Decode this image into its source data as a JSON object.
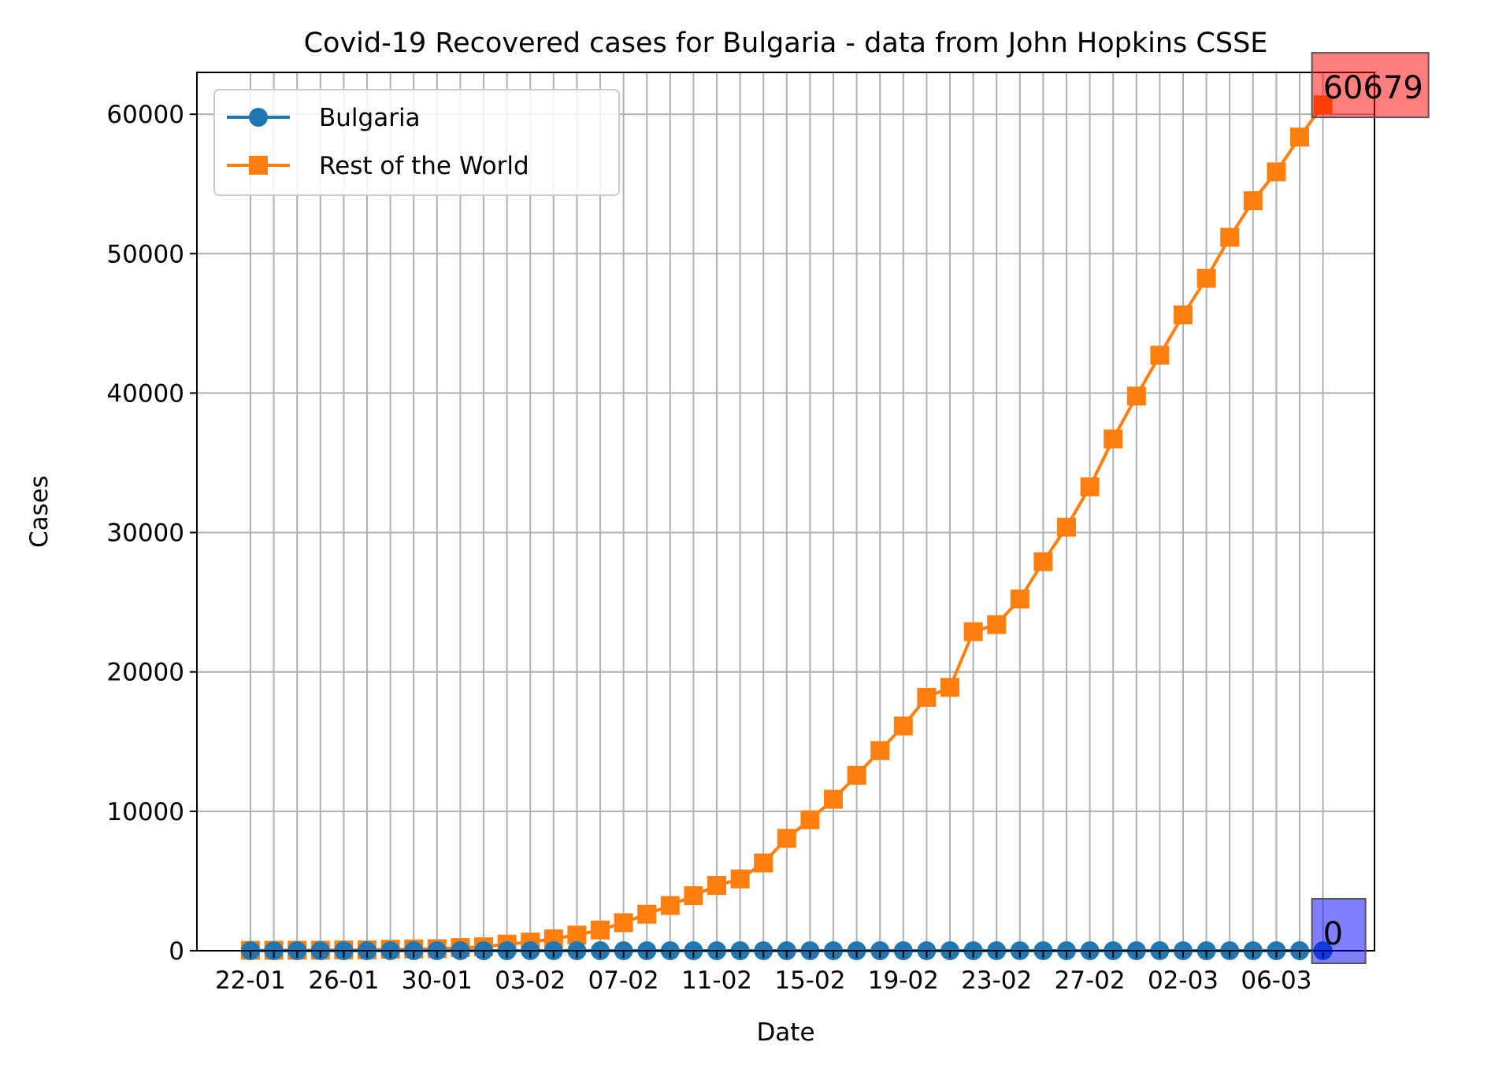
{
  "chart_data": {
    "type": "line",
    "title": "Covid-19 Recovered cases for Bulgaria - data from John Hopkins CSSE",
    "xlabel": "Date",
    "ylabel": "Cases",
    "ylim": [
      0,
      63000
    ],
    "yticks": [
      0,
      10000,
      20000,
      30000,
      40000,
      50000,
      60000
    ],
    "grid": true,
    "legend_position": "upper-left",
    "x": [
      "22-01",
      "23-01",
      "24-01",
      "25-01",
      "26-01",
      "27-01",
      "28-01",
      "29-01",
      "30-01",
      "31-01",
      "01-02",
      "02-02",
      "03-02",
      "04-02",
      "05-02",
      "06-02",
      "07-02",
      "08-02",
      "09-02",
      "10-02",
      "11-02",
      "12-02",
      "13-02",
      "14-02",
      "15-02",
      "16-02",
      "17-02",
      "18-02",
      "19-02",
      "20-02",
      "21-02",
      "22-02",
      "23-02",
      "24-02",
      "25-02",
      "26-02",
      "27-02",
      "28-02",
      "29-02",
      "01-03",
      "02-03",
      "03-03",
      "04-03",
      "05-03",
      "06-03",
      "07-03",
      "08-03"
    ],
    "xtick_labels": [
      "22-01",
      "26-01",
      "30-01",
      "03-02",
      "07-02",
      "11-02",
      "15-02",
      "19-02",
      "23-02",
      "27-02",
      "02-03",
      "06-03"
    ],
    "series": [
      {
        "name": "Bulgaria",
        "color": "#1f77b4",
        "marker": "circle",
        "values": [
          0,
          0,
          0,
          0,
          0,
          0,
          0,
          0,
          0,
          0,
          0,
          0,
          0,
          0,
          0,
          0,
          0,
          0,
          0,
          0,
          0,
          0,
          0,
          0,
          0,
          0,
          0,
          0,
          0,
          0,
          0,
          0,
          0,
          0,
          0,
          0,
          0,
          0,
          0,
          0,
          0,
          0,
          0,
          0,
          0,
          0,
          0
        ]
      },
      {
        "name": "Rest of the World",
        "color": "#ff7f0e",
        "marker": "square",
        "values": [
          28,
          30,
          36,
          39,
          52,
          61,
          107,
          126,
          143,
          222,
          284,
          472,
          623,
          852,
          1124,
          1487,
          2011,
          2616,
          3244,
          3946,
          4683,
          5150,
          6295,
          8058,
          9395,
          10865,
          12583,
          14352,
          16121,
          18177,
          18890,
          22886,
          23394,
          25227,
          27905,
          30384,
          33277,
          36711,
          39782,
          42716,
          45602,
          48228,
          51170,
          53796,
          55865,
          58359,
          60679
        ]
      }
    ],
    "annotations": [
      {
        "text": "60679",
        "series": "Rest of the World",
        "color": "#ff0000"
      },
      {
        "text": "0",
        "series": "Bulgaria",
        "color": "#0000ff"
      }
    ]
  }
}
